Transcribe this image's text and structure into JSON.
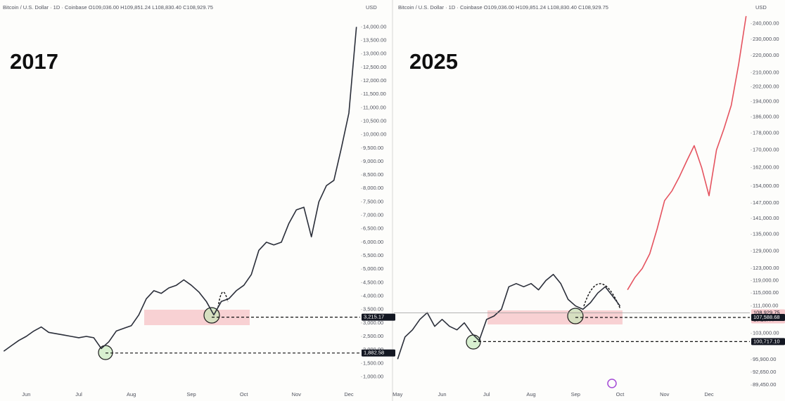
{
  "chart_data": [
    {
      "type": "line",
      "header": "Bitcoin / U.S. Dollar · 1D · Coinbase  O109,036.00  H109,851.24  L108,830.40  C108,929.75",
      "title": "2017",
      "unit": "USD",
      "categories": [
        null,
        null,
        null,
        "Jun",
        null,
        null,
        null,
        null,
        null,
        null,
        "Jul",
        null,
        null,
        null,
        null,
        null,
        null,
        "Aug",
        null,
        null,
        null,
        null,
        null,
        null,
        null,
        "Sep",
        null,
        null,
        null,
        null,
        null,
        null,
        "Oct",
        null,
        null,
        null,
        null,
        null,
        null,
        "Nov",
        null,
        null,
        null,
        null,
        null,
        null,
        "Dec",
        null
      ],
      "series": [
        {
          "color": "#2a2e39",
          "values": [
            1950,
            2150,
            2350,
            2500,
            2700,
            2850,
            2650,
            2600,
            2550,
            2500,
            2450,
            2500,
            2450,
            2050,
            2300,
            2700,
            2800,
            2900,
            3300,
            3900,
            4200,
            4100,
            4300,
            4400,
            4600,
            4400,
            4150,
            3800,
            3300,
            3800,
            3900,
            4200,
            4400,
            4800,
            5700,
            6000,
            5900,
            6000,
            6700,
            7200,
            7300,
            6200,
            7500,
            8100,
            8300,
            9500,
            10800,
            14000
          ]
        }
      ],
      "ylim": [
        700,
        15000
      ],
      "log": false,
      "yticks": [
        {
          "value": 1000,
          "label": "1,000.00"
        },
        {
          "value": 1500,
          "label": "1,500.00"
        },
        {
          "value": 2000,
          "label": "2,000.00"
        },
        {
          "value": 2500,
          "label": "2,500.00"
        },
        {
          "value": 3000,
          "label": "3,000.00"
        },
        {
          "value": 3500,
          "label": "3,500.00"
        },
        {
          "value": 4000,
          "label": "4,000.00"
        },
        {
          "value": 4500,
          "label": "4,500.00"
        },
        {
          "value": 5000,
          "label": "5,000.00"
        },
        {
          "value": 5500,
          "label": "5,500.00"
        },
        {
          "value": 6000,
          "label": "6,000.00"
        },
        {
          "value": 6500,
          "label": "6,500.00"
        },
        {
          "value": 7000,
          "label": "7,000.00"
        },
        {
          "value": 7500,
          "label": "7,500.00"
        },
        {
          "value": 8000,
          "label": "8,000.00"
        },
        {
          "value": 8500,
          "label": "8,500.00"
        },
        {
          "value": 9000,
          "label": "9,000.00"
        },
        {
          "value": 9500,
          "label": "9,500.00"
        },
        {
          "value": 10000,
          "label": "10,000.00"
        },
        {
          "value": 10500,
          "label": "10,500.00"
        },
        {
          "value": 11000,
          "label": "11,000.00"
        },
        {
          "value": 11500,
          "label": "11,500.00"
        },
        {
          "value": 12000,
          "label": "12,000.00"
        },
        {
          "value": 12500,
          "label": "12,500.00"
        },
        {
          "value": 13000,
          "label": "13,000.00"
        },
        {
          "value": 13500,
          "label": "13,500.00"
        },
        {
          "value": 14000,
          "label": "14,000.00"
        }
      ],
      "price_lines": [
        {
          "value": 3215.17,
          "label": "3,215.17",
          "color": "#131722",
          "style": "dashed"
        },
        {
          "value": 1882.58,
          "label": "1,882.58",
          "color": "#131722",
          "style": "dashed"
        }
      ]
    },
    {
      "type": "line",
      "header": "Bitcoin / U.S. Dollar · 1D · Coinbase  O109,036.00  H109,851.24  L108,830.40  C108,929.75",
      "title": "2025",
      "unit": "USD",
      "categories": [
        "May",
        null,
        null,
        null,
        null,
        null,
        "Jun",
        null,
        null,
        null,
        null,
        null,
        "Jul",
        null,
        null,
        null,
        null,
        null,
        "Aug",
        null,
        null,
        null,
        null,
        null,
        "Sep",
        null,
        null,
        null,
        null,
        null,
        "Oct",
        null,
        null,
        null,
        null,
        null,
        "Nov",
        null,
        null,
        null,
        null,
        null,
        "Dec",
        null,
        null,
        null,
        null,
        null
      ],
      "series": [
        {
          "color": "#2a2e39",
          "values": [
            96000,
            102000,
            104000,
            107000,
            109000,
            105000,
            107000,
            105000,
            104000,
            106000,
            103000,
            101000,
            107000,
            108000,
            110000,
            117000,
            118000,
            117000,
            118000,
            116000,
            119000,
            121000,
            118000,
            113000,
            111000,
            110000,
            112000,
            115000,
            117000,
            114000,
            111000,
            null,
            null,
            null,
            null,
            null,
            null,
            null,
            null,
            null,
            null,
            null,
            null,
            null,
            null,
            null,
            null,
            null
          ]
        },
        {
          "color": "#e5535f",
          "values": [
            null,
            null,
            null,
            null,
            null,
            null,
            null,
            null,
            null,
            null,
            null,
            null,
            null,
            null,
            null,
            null,
            null,
            null,
            null,
            null,
            null,
            null,
            null,
            null,
            null,
            null,
            null,
            null,
            null,
            null,
            null,
            116000,
            120000,
            123000,
            128000,
            137000,
            148000,
            152000,
            158000,
            165000,
            172000,
            162000,
            150000,
            170000,
            180000,
            192000,
            215000,
            245000
          ]
        }
      ],
      "ylim": [
        88300,
        256000
      ],
      "log": true,
      "yticks": [
        {
          "value": 89450,
          "label": "89,450.00"
        },
        {
          "value": 92650,
          "label": "92,650.00"
        },
        {
          "value": 95900,
          "label": "95,900.00"
        },
        {
          "value": 103000,
          "label": "103,000.00"
        },
        {
          "value": 111000,
          "label": "111,000.00"
        },
        {
          "value": 115000,
          "label": "115,000.00"
        },
        {
          "value": 119000,
          "label": "119,000.00"
        },
        {
          "value": 123000,
          "label": "123,000.00"
        },
        {
          "value": 129000,
          "label": "129,000.00"
        },
        {
          "value": 135000,
          "label": "135,000.00"
        },
        {
          "value": 141000,
          "label": "141,000.00"
        },
        {
          "value": 147000,
          "label": "147,000.00"
        },
        {
          "value": 154000,
          "label": "154,000.00"
        },
        {
          "value": 162000,
          "label": "162,000.00"
        },
        {
          "value": 170000,
          "label": "170,000.00"
        },
        {
          "value": 178000,
          "label": "178,000.00"
        },
        {
          "value": 186000,
          "label": "186,000.00"
        },
        {
          "value": 194000,
          "label": "194,000.00"
        },
        {
          "value": 202000,
          "label": "202,000.00"
        },
        {
          "value": 210000,
          "label": "210,000.00"
        },
        {
          "value": 220000,
          "label": "220,000.00"
        },
        {
          "value": 230000,
          "label": "230,000.00"
        },
        {
          "value": 240000,
          "label": "240,000.00"
        }
      ],
      "price_lines": [
        {
          "value": 108929.75,
          "label": "108,929.75",
          "countdown": "13:20:44",
          "color": "#f6c9cd",
          "style": "solid"
        },
        {
          "value": 107588.68,
          "label": "107,588.68",
          "color": "#131722",
          "style": "dashed"
        },
        {
          "value": 100717.1,
          "label": "100,717.10",
          "color": "#131722",
          "style": "dashed"
        }
      ]
    }
  ]
}
